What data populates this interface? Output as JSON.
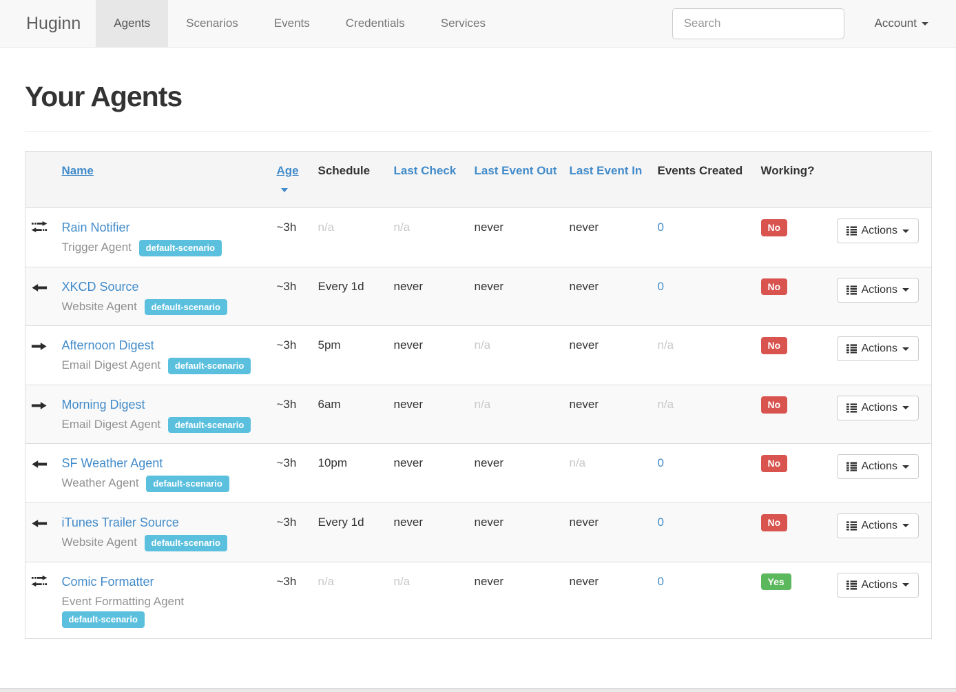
{
  "navbar": {
    "brand": "Huginn",
    "items": [
      {
        "label": "Agents",
        "active": true
      },
      {
        "label": "Scenarios",
        "active": false
      },
      {
        "label": "Events",
        "active": false
      },
      {
        "label": "Credentials",
        "active": false
      },
      {
        "label": "Services",
        "active": false
      }
    ],
    "search_placeholder": "Search",
    "account_label": "Account"
  },
  "page": {
    "title": "Your Agents"
  },
  "table": {
    "headers": {
      "name": "Name",
      "age": "Age",
      "schedule": "Schedule",
      "last_check": "Last Check",
      "last_event_out": "Last Event Out",
      "last_event_in": "Last Event In",
      "events_created": "Events Created",
      "working": "Working?"
    },
    "sort": {
      "column": "Age",
      "direction": "desc"
    },
    "actions_label": "Actions",
    "rows": [
      {
        "icon": "bidirectional-arrows-icon",
        "name": "Rain Notifier",
        "type": "Trigger Agent",
        "scenario": "default-scenario",
        "age": "~3h",
        "schedule": "n/a",
        "last_check": "n/a",
        "last_event_out": "never",
        "last_event_in": "never",
        "events_created": "0",
        "working": "No"
      },
      {
        "icon": "left-arrow-icon",
        "name": "XKCD Source",
        "type": "Website Agent",
        "scenario": "default-scenario",
        "age": "~3h",
        "schedule": "Every 1d",
        "last_check": "never",
        "last_event_out": "never",
        "last_event_in": "never",
        "events_created": "0",
        "working": "No"
      },
      {
        "icon": "right-arrow-icon",
        "name": "Afternoon Digest",
        "type": "Email Digest Agent",
        "scenario": "default-scenario",
        "age": "~3h",
        "schedule": "5pm",
        "last_check": "never",
        "last_event_out": "n/a",
        "last_event_in": "never",
        "events_created": "n/a",
        "working": "No"
      },
      {
        "icon": "right-arrow-icon",
        "name": "Morning Digest",
        "type": "Email Digest Agent",
        "scenario": "default-scenario",
        "age": "~3h",
        "schedule": "6am",
        "last_check": "never",
        "last_event_out": "n/a",
        "last_event_in": "never",
        "events_created": "n/a",
        "working": "No"
      },
      {
        "icon": "left-arrow-icon",
        "name": "SF Weather Agent",
        "type": "Weather Agent",
        "scenario": "default-scenario",
        "age": "~3h",
        "schedule": "10pm",
        "last_check": "never",
        "last_event_out": "never",
        "last_event_in": "n/a",
        "events_created": "0",
        "working": "No"
      },
      {
        "icon": "left-arrow-icon",
        "name": "iTunes Trailer Source",
        "type": "Website Agent",
        "scenario": "default-scenario",
        "age": "~3h",
        "schedule": "Every 1d",
        "last_check": "never",
        "last_event_out": "never",
        "last_event_in": "never",
        "events_created": "0",
        "working": "No"
      },
      {
        "icon": "bidirectional-arrows-icon",
        "name": "Comic Formatter",
        "type": "Event Formatting Agent",
        "scenario": "default-scenario",
        "age": "~3h",
        "schedule": "n/a",
        "last_check": "n/a",
        "last_event_out": "never",
        "last_event_in": "never",
        "events_created": "0",
        "working": "Yes"
      }
    ]
  },
  "colors": {
    "link_blue": "#428bca",
    "badge_info": "#5bc0de",
    "label_danger": "#d9534f",
    "label_success": "#5cb85c",
    "navbar_bg": "#f8f8f8",
    "stripe_bg": "#f9f9f9"
  }
}
